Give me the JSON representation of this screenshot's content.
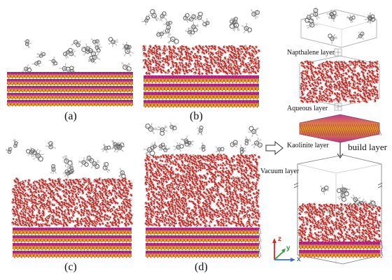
{
  "panels": {
    "a": "(a)",
    "b": "(b)",
    "c": "(c)",
    "d": "(d)"
  },
  "layers": {
    "napthalene": "Napthalene layer",
    "aqueous": "Aqueous layer",
    "kaolinite": "Kaolinite layer",
    "vacuum": "Vacuum layer",
    "build": "build layer"
  },
  "axes": {
    "x": "x",
    "y": "y",
    "z": "z"
  },
  "colors": {
    "oxygen": "#d62a22",
    "hydrogen": "#f2f2f2",
    "silicon": "#e3a21a",
    "aluminium": "#b82a8a",
    "carbon": "#8a8a8a",
    "axis_x": "#3a6bd8",
    "axis_y": "#2f9a3c",
    "axis_z": "#d62a22"
  }
}
